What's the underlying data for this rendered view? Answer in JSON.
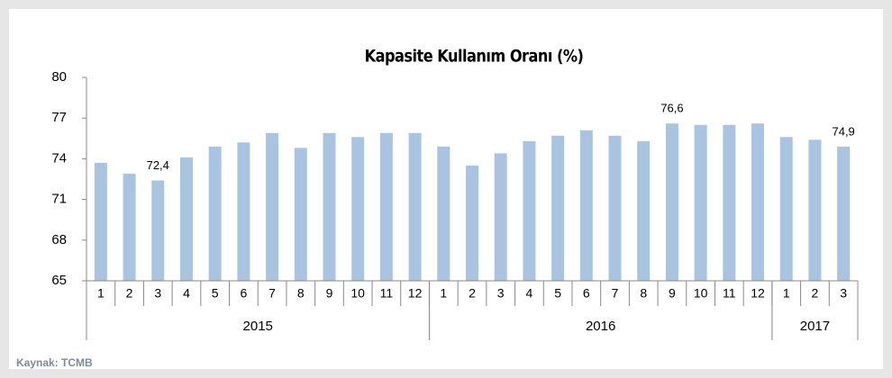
{
  "chart_data": {
    "type": "bar",
    "title": "Kapasite Kullanım Oranı (%)",
    "categories": [
      "1",
      "2",
      "3",
      "4",
      "5",
      "6",
      "7",
      "8",
      "9",
      "10",
      "11",
      "12",
      "1",
      "2",
      "3",
      "4",
      "5",
      "6",
      "7",
      "8",
      "9",
      "10",
      "11",
      "12",
      "1",
      "2",
      "3"
    ],
    "groups": [
      {
        "name": "2015",
        "size": 12
      },
      {
        "name": "2016",
        "size": 12
      },
      {
        "name": "2017",
        "size": 3
      }
    ],
    "values": [
      73.7,
      72.9,
      72.4,
      74.1,
      74.9,
      75.2,
      75.9,
      74.8,
      75.9,
      75.6,
      75.9,
      75.9,
      74.9,
      73.5,
      74.4,
      75.3,
      75.7,
      76.1,
      75.7,
      75.3,
      76.6,
      76.5,
      76.5,
      76.6,
      75.6,
      75.4,
      74.9
    ],
    "value_labels": [
      null,
      null,
      "72,4",
      null,
      null,
      null,
      null,
      null,
      null,
      null,
      null,
      null,
      null,
      null,
      null,
      null,
      null,
      null,
      null,
      null,
      "76,6",
      null,
      null,
      null,
      null,
      null,
      "74,9"
    ],
    "color": "#a9c4e0",
    "ylim": [
      65,
      80
    ],
    "yticks": [
      65,
      68,
      71,
      74,
      77,
      80
    ],
    "source": "Kaynak: TCMB"
  }
}
